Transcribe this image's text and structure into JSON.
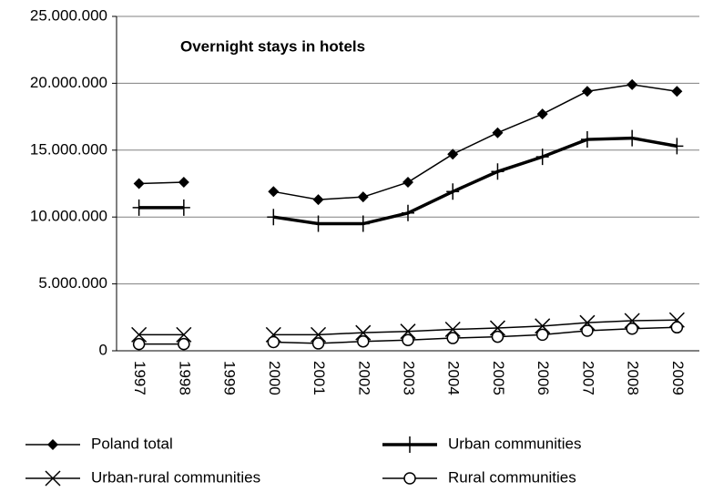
{
  "chart_data": {
    "type": "line",
    "annotation": "Overnight stays in hotels",
    "categories": [
      "1997",
      "1998",
      "1999",
      "2000",
      "2001",
      "2002",
      "2003",
      "2004",
      "2005",
      "2006",
      "2007",
      "2008",
      "2009"
    ],
    "series": [
      {
        "name": "Poland total",
        "color": "#000000",
        "marker": "diamond",
        "line_width": 1.5,
        "values": [
          12500000,
          12600000,
          null,
          11900000,
          11300000,
          11500000,
          12600000,
          14700000,
          16300000,
          17700000,
          19400000,
          19900000,
          19400000
        ]
      },
      {
        "name": "Urban communities",
        "color": "#000000",
        "marker": "plus",
        "line_width": 3.5,
        "values": [
          10700000,
          10700000,
          null,
          10000000,
          9500000,
          9500000,
          10300000,
          11900000,
          13400000,
          14500000,
          15800000,
          15900000,
          15300000
        ]
      },
      {
        "name": "Urban-rural communities",
        "color": "#000000",
        "marker": "cross",
        "line_width": 1.5,
        "values": [
          1200000,
          1200000,
          null,
          1200000,
          1200000,
          1350000,
          1450000,
          1600000,
          1700000,
          1850000,
          2100000,
          2250000,
          2300000
        ]
      },
      {
        "name": "Rural communities",
        "color": "#000000",
        "marker": "circle",
        "line_width": 1.5,
        "values": [
          500000,
          500000,
          null,
          650000,
          550000,
          700000,
          800000,
          950000,
          1050000,
          1200000,
          1500000,
          1650000,
          1750000
        ]
      }
    ],
    "ylim": [
      0,
      25000000
    ],
    "yticks": [
      0,
      {
        "value": 5000000,
        "label": "5.000.000"
      },
      {
        "value": 10000000,
        "label": "10.000.000"
      },
      {
        "value": 15000000,
        "label": "15.000.000"
      },
      {
        "value": 20000000,
        "label": "20.000.000"
      },
      {
        "value": 25000000,
        "label": "25.000.000"
      }
    ],
    "grid": true
  }
}
